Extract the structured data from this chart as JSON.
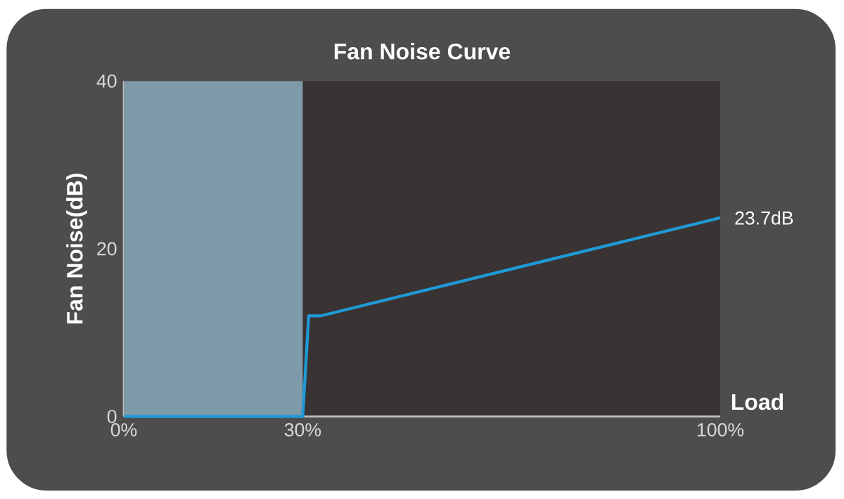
{
  "chart_data": {
    "type": "line",
    "title": "Fan Noise Curve",
    "xlabel": "Load",
    "ylabel": "Fan Noise(dB)",
    "x": [
      0,
      30,
      31,
      33,
      100
    ],
    "series": [
      {
        "color": "#1e9ad6",
        "values": [
          0,
          0,
          12,
          12,
          23.7
        ]
      }
    ],
    "xlim": [
      0,
      100
    ],
    "xticks": [
      {
        "value": 0,
        "label": "0%"
      },
      {
        "value": 30,
        "label": "30%"
      },
      {
        "value": 100,
        "label": "100%"
      }
    ],
    "ylim": [
      0,
      40
    ],
    "yticks": [
      0,
      20,
      40
    ],
    "bands": [
      {
        "axis": "x",
        "from": 0,
        "to": 30,
        "color": "#7f9aa8"
      }
    ],
    "annotations": [
      {
        "text": "23.7dB",
        "x": 100,
        "y": 23.7
      }
    ]
  }
}
